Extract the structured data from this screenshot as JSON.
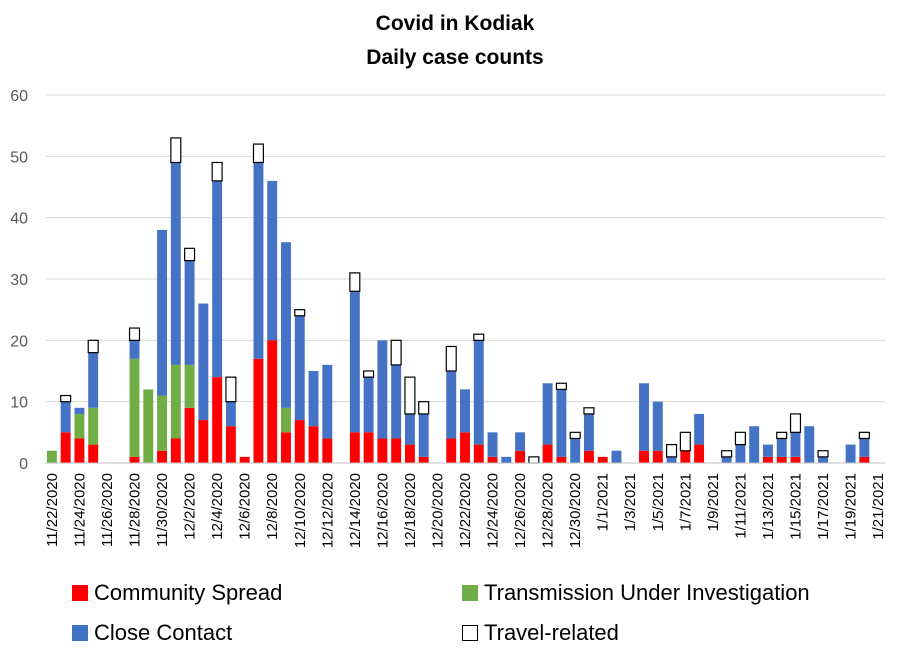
{
  "chart_data": {
    "type": "bar",
    "stacked": true,
    "title": "Covid in Kodiak",
    "subtitle": "Daily case counts",
    "ylim": [
      0,
      60
    ],
    "yticks": [
      0,
      10,
      20,
      30,
      40,
      50,
      60
    ],
    "grid": true,
    "legend_position": "bottom",
    "categories": [
      "11/22/2020",
      "11/23/2020",
      "11/24/2020",
      "11/25/2020",
      "11/26/2020",
      "11/27/2020",
      "11/28/2020",
      "11/29/2020",
      "11/30/2020",
      "12/1/2020",
      "12/2/2020",
      "12/3/2020",
      "12/4/2020",
      "12/5/2020",
      "12/6/2020",
      "12/7/2020",
      "12/8/2020",
      "12/9/2020",
      "12/10/2020",
      "12/11/2020",
      "12/12/2020",
      "12/13/2020",
      "12/14/2020",
      "12/15/2020",
      "12/16/2020",
      "12/17/2020",
      "12/18/2020",
      "12/19/2020",
      "12/20/2020",
      "12/21/2020",
      "12/22/2020",
      "12/23/2020",
      "12/24/2020",
      "12/25/2020",
      "12/26/2020",
      "12/27/2020",
      "12/28/2020",
      "12/29/2020",
      "12/30/2020",
      "12/31/2020",
      "1/1/2021",
      "1/2/2021",
      "1/3/2021",
      "1/4/2021",
      "1/5/2021",
      "1/6/2021",
      "1/7/2021",
      "1/8/2021",
      "1/9/2021",
      "1/10/2021",
      "1/11/2021",
      "1/12/2021",
      "1/13/2021",
      "1/14/2021",
      "1/15/2021",
      "1/16/2021",
      "1/17/2021",
      "1/18/2021",
      "1/19/2021",
      "1/20/2021",
      "1/21/2021"
    ],
    "tick_labels": [
      "11/22/2020",
      "11/24/2020",
      "11/26/2020",
      "11/28/2020",
      "11/30/2020",
      "12/2/2020",
      "12/4/2020",
      "12/6/2020",
      "12/8/2020",
      "12/10/2020",
      "12/12/2020",
      "12/14/2020",
      "12/16/2020",
      "12/18/2020",
      "12/20/2020",
      "12/22/2020",
      "12/24/2020",
      "12/26/2020",
      "12/28/2020",
      "12/30/2020",
      "1/1/2021",
      "1/3/2021",
      "1/5/2021",
      "1/7/2021",
      "1/9/2021",
      "1/11/2021",
      "1/13/2021",
      "1/15/2021",
      "1/17/2021",
      "1/19/2021",
      "1/21/2021"
    ],
    "series": [
      {
        "name": "Community Spread",
        "color": "#ff0000",
        "values": [
          0,
          5,
          4,
          3,
          0,
          0,
          1,
          0,
          2,
          4,
          9,
          7,
          14,
          6,
          1,
          17,
          20,
          5,
          7,
          6,
          4,
          0,
          5,
          5,
          4,
          4,
          3,
          1,
          0,
          4,
          5,
          3,
          1,
          0,
          2,
          0,
          3,
          1,
          0,
          2,
          1,
          0,
          0,
          2,
          2,
          0,
          2,
          3,
          0,
          0,
          0,
          0,
          1,
          1,
          1,
          0,
          0,
          0,
          0,
          1,
          0
        ]
      },
      {
        "name": "Transmission Under Investigation",
        "color": "#70ad47",
        "values": [
          2,
          0,
          4,
          6,
          0,
          0,
          16,
          12,
          9,
          12,
          7,
          0,
          0,
          0,
          0,
          0,
          0,
          4,
          0,
          0,
          0,
          0,
          0,
          0,
          0,
          0,
          0,
          0,
          0,
          0,
          0,
          0,
          0,
          0,
          0,
          0,
          0,
          0,
          0,
          0,
          0,
          0,
          0,
          0,
          0,
          0,
          0,
          0,
          0,
          0,
          0,
          0,
          0,
          0,
          0,
          0,
          0,
          0,
          0,
          0,
          0
        ]
      },
      {
        "name": "Close Contact",
        "color": "#4472c4",
        "values": [
          0,
          5,
          1,
          9,
          0,
          0,
          3,
          0,
          27,
          33,
          17,
          19,
          32,
          4,
          0,
          32,
          26,
          27,
          17,
          9,
          12,
          0,
          23,
          9,
          16,
          12,
          5,
          7,
          0,
          11,
          7,
          17,
          4,
          1,
          3,
          0,
          10,
          11,
          4,
          6,
          0,
          2,
          0,
          11,
          8,
          1,
          0,
          5,
          0,
          1,
          3,
          6,
          2,
          3,
          4,
          6,
          1,
          0,
          3,
          3,
          0
        ]
      },
      {
        "name": "Travel-related",
        "color": "#ffffff",
        "values": [
          0,
          1,
          0,
          2,
          0,
          0,
          2,
          0,
          0,
          4,
          2,
          0,
          3,
          4,
          0,
          3,
          0,
          0,
          1,
          0,
          0,
          0,
          3,
          1,
          0,
          4,
          6,
          2,
          0,
          4,
          0,
          1,
          0,
          0,
          0,
          1,
          0,
          1,
          1,
          1,
          0,
          0,
          0,
          0,
          0,
          2,
          3,
          0,
          0,
          1,
          2,
          0,
          0,
          1,
          3,
          0,
          1,
          0,
          0,
          1,
          0
        ]
      }
    ]
  }
}
